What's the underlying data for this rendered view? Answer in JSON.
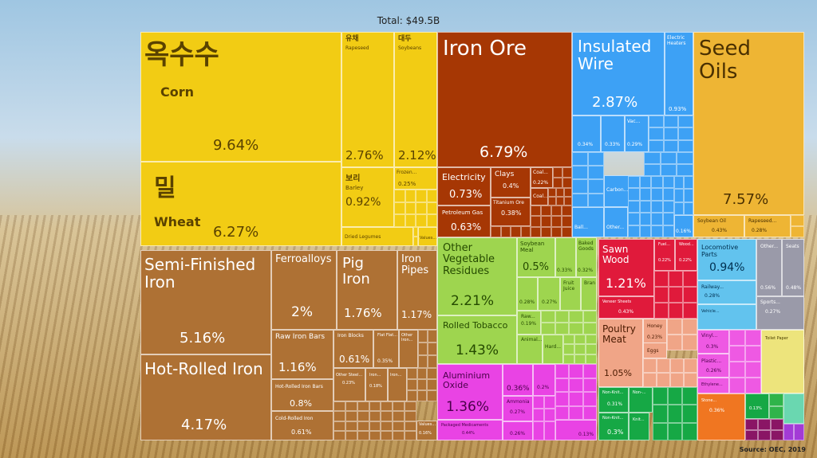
{
  "header": {
    "total": "Total: $49.5B"
  },
  "footer": {
    "source": "Source: OEC, 2019"
  },
  "colors": {
    "vegetable": "#f2cc14",
    "mineral": "#a63704",
    "machinery": "#3da1f5",
    "animal_veg_oils": "#eeb534",
    "metals": "#ae7134",
    "foodstuffs": "#9ed54f",
    "chemicals": "#e943e4",
    "wood": "#e01a3b",
    "animal": "#f0a587",
    "transport": "#62c3ee",
    "misc": "#9a9aa9",
    "plastics": "#ee59e3",
    "textiles": "#ede47c",
    "green": "#16a845",
    "orange": "#f07621"
  },
  "chart_data": {
    "type": "treemap",
    "title": "Total: $49.5B",
    "items": [
      {
        "id": "corn",
        "label_ko": "옥수수",
        "label": "Corn",
        "value": 9.64,
        "value_label": "9.64%",
        "group": "vegetable"
      },
      {
        "id": "wheat",
        "label_ko": "밀",
        "label": "Wheat",
        "value": 6.27,
        "value_label": "6.27%",
        "group": "vegetable"
      },
      {
        "id": "rapeseed",
        "label_ko": "유채",
        "label": "Rapeseed",
        "value": 2.76,
        "value_label": "2.76%",
        "group": "vegetable"
      },
      {
        "id": "soybeans",
        "label_ko": "대두",
        "label": "Soybeans",
        "value": 2.12,
        "value_label": "2.12%",
        "group": "vegetable"
      },
      {
        "id": "barley",
        "label_ko": "보리",
        "label": "Barley",
        "value": 0.92,
        "value_label": "0.92%",
        "group": "vegetable"
      },
      {
        "id": "frozen",
        "label": "Frozen...",
        "value": 0.25,
        "value_label": "0.25%",
        "group": "vegetable"
      },
      {
        "id": "dried_legumes",
        "label": "Dried Legumes",
        "group": "vegetable"
      },
      {
        "id": "values_veg",
        "label": "Values...",
        "group": "vegetable"
      },
      {
        "id": "iron_ore",
        "label": "Iron Ore",
        "value": 6.79,
        "value_label": "6.79%",
        "group": "mineral"
      },
      {
        "id": "electricity",
        "label": "Electricity",
        "value": 0.73,
        "value_label": "0.73%",
        "group": "mineral"
      },
      {
        "id": "petroleum_gas",
        "label": "Petroleum Gas",
        "value": 0.63,
        "value_label": "0.63%",
        "group": "mineral"
      },
      {
        "id": "clays",
        "label": "Clays",
        "value": 0.4,
        "value_label": "0.4%",
        "group": "mineral"
      },
      {
        "id": "coal1",
        "label": "Coal...",
        "value": 0.22,
        "value_label": "0.22%",
        "group": "mineral"
      },
      {
        "id": "titanium_ore",
        "label": "Titanium Ore",
        "value": 0.38,
        "value_label": "0.38%",
        "group": "mineral"
      },
      {
        "id": "coal2",
        "label": "Coal...",
        "group": "mineral"
      },
      {
        "id": "insulated_wire",
        "label": "Insulated Wire",
        "value": 2.87,
        "value_label": "2.87%",
        "group": "machinery"
      },
      {
        "id": "electric_heaters",
        "label": "Electric Heaters",
        "value": 0.93,
        "value_label": "0.93%",
        "group": "machinery"
      },
      {
        "id": "mach_a",
        "label": "",
        "value": 0.34,
        "value_label": "0.34%",
        "group": "machinery"
      },
      {
        "id": "mach_b",
        "label": "",
        "value": 0.33,
        "value_label": "0.33%",
        "group": "machinery"
      },
      {
        "id": "mach_vac",
        "label": "Vac...",
        "value": 0.29,
        "value_label": "0.29%",
        "group": "machinery"
      },
      {
        "id": "carbon",
        "label": "Carbon...",
        "group": "machinery"
      },
      {
        "id": "ball",
        "label": "Ball...",
        "group": "machinery"
      },
      {
        "id": "other_mach",
        "label": "Other...",
        "group": "machinery"
      },
      {
        "id": "mach_c",
        "label": "",
        "value": 0.16,
        "value_label": "0.16%",
        "group": "machinery"
      },
      {
        "id": "seed_oils",
        "label": "Seed Oils",
        "value": 7.57,
        "value_label": "7.57%",
        "group": "animal_veg_oils"
      },
      {
        "id": "soybean_oil",
        "label": "Soybean Oil",
        "value": 0.43,
        "value_label": "0.43%",
        "group": "animal_veg_oils"
      },
      {
        "id": "rapeseed_oil",
        "label": "Rapeseed...",
        "value": 0.28,
        "value_label": "0.28%",
        "group": "animal_veg_oils"
      },
      {
        "id": "semi_finished_iron",
        "label": "Semi-Finished Iron",
        "value": 5.16,
        "value_label": "5.16%",
        "group": "metals"
      },
      {
        "id": "hot_rolled_iron",
        "label": "Hot-Rolled Iron",
        "value": 4.17,
        "value_label": "4.17%",
        "group": "metals"
      },
      {
        "id": "ferroalloys",
        "label": "Ferroalloys",
        "value": 2,
        "value_label": "2%",
        "group": "metals"
      },
      {
        "id": "raw_iron_bars",
        "label": "Raw Iron Bars",
        "value": 1.16,
        "value_label": "1.16%",
        "group": "metals"
      },
      {
        "id": "hot_rolled_iron_bars",
        "label": "Hot-Rolled Iron Bars",
        "value": 0.8,
        "value_label": "0.8%",
        "group": "metals"
      },
      {
        "id": "cold_rolled_iron",
        "label": "Cold-Rolled Iron",
        "value": 0.61,
        "value_label": "0.61%",
        "group": "metals"
      },
      {
        "id": "pig_iron",
        "label": "Pig Iron",
        "value": 1.76,
        "value_label": "1.76%",
        "group": "metals"
      },
      {
        "id": "iron_pipes",
        "label": "Iron Pipes",
        "value": 1.17,
        "value_label": "1.17%",
        "group": "metals"
      },
      {
        "id": "iron_blocks",
        "label": "Iron Blocks",
        "value": 0.61,
        "value_label": "0.61%",
        "group": "metals"
      },
      {
        "id": "flat_flat",
        "label": "Flat Flat...",
        "value": 0.35,
        "value_label": "0.35%",
        "group": "metals"
      },
      {
        "id": "other_iron",
        "label": "Other Iron...",
        "group": "metals"
      },
      {
        "id": "other_steel",
        "label": "Other Steel...",
        "value": 0.23,
        "value_label": "0.23%",
        "group": "metals"
      },
      {
        "id": "iron_small",
        "label": "Iron...",
        "value": 0.18,
        "value_label": "0.18%",
        "group": "metals"
      },
      {
        "id": "iron_small2",
        "label": "Iron...",
        "group": "metals"
      },
      {
        "id": "values_metal",
        "label": "Values...",
        "value": 0.16,
        "value_label": "0.16%",
        "group": "metals"
      },
      {
        "id": "other_vegetable_residues",
        "label": "Other Vegetable Residues",
        "value": 2.21,
        "value_label": "2.21%",
        "group": "foodstuffs"
      },
      {
        "id": "rolled_tobacco",
        "label": "Rolled Tobacco",
        "value": 1.43,
        "value_label": "1.43%",
        "group": "foodstuffs"
      },
      {
        "id": "soybean_meal",
        "label": "Soybean Meal",
        "value": 0.5,
        "value_label": "0.5%",
        "group": "foodstuffs"
      },
      {
        "id": "food_a",
        "label": "",
        "value": 0.33,
        "value_label": "0.33%",
        "group": "foodstuffs"
      },
      {
        "id": "baked_goods",
        "label": "Baked Goods",
        "value": 0.32,
        "value_label": "0.32%",
        "group": "foodstuffs"
      },
      {
        "id": "food_b",
        "label": "",
        "value": 0.28,
        "value_label": "0.28%",
        "group": "foodstuffs"
      },
      {
        "id": "food_c",
        "label": "",
        "value": 0.27,
        "value_label": "0.27%",
        "group": "foodstuffs"
      },
      {
        "id": "fruit_juice",
        "label": "Fruit Juice",
        "group": "foodstuffs"
      },
      {
        "id": "bran",
        "label": "Bran",
        "group": "foodstuffs"
      },
      {
        "id": "raw",
        "label": "Raw...",
        "value": 0.19,
        "value_label": "0.19%",
        "group": "foodstuffs"
      },
      {
        "id": "animal_food",
        "label": "Animal...",
        "group": "foodstuffs"
      },
      {
        "id": "hard",
        "label": "Hard...",
        "group": "foodstuffs"
      },
      {
        "id": "aluminium_oxide",
        "label": "Aluminium Oxide",
        "value": 1.36,
        "value_label": "1.36%",
        "group": "chemicals"
      },
      {
        "id": "packaged_medicaments",
        "label": "Packaged Medicaments",
        "value": 0.44,
        "value_label": "0.44%",
        "group": "chemicals"
      },
      {
        "id": "chem_a",
        "label": "",
        "value": 0.36,
        "value_label": "0.36%",
        "group": "chemicals"
      },
      {
        "id": "chem_b",
        "label": "",
        "value": 0.2,
        "value_label": "0.2%",
        "group": "chemicals"
      },
      {
        "id": "ammonia",
        "label": "Ammonia",
        "value": 0.27,
        "value_label": "0.27%",
        "group": "chemicals"
      },
      {
        "id": "chem_c",
        "label": "",
        "value": 0.26,
        "value_label": "0.26%",
        "group": "chemicals"
      },
      {
        "id": "chem_d",
        "label": "",
        "value": 0.13,
        "value_label": "0.13%",
        "group": "chemicals"
      },
      {
        "id": "sawn_wood",
        "label": "Sawn Wood",
        "value": 1.21,
        "value_label": "1.21%",
        "group": "wood"
      },
      {
        "id": "veneer_sheets",
        "label": "Veneer Sheets",
        "value": 0.43,
        "value_label": "0.43%",
        "group": "wood"
      },
      {
        "id": "fuel",
        "label": "Fuel...",
        "value": 0.22,
        "value_label": "0.22%",
        "group": "wood"
      },
      {
        "id": "wood_small",
        "label": "Wood...",
        "value": 0.22,
        "value_label": "0.22%",
        "group": "wood"
      },
      {
        "id": "poultry_meat",
        "label": "Poultry Meat",
        "value": 1.05,
        "value_label": "1.05%",
        "group": "animal"
      },
      {
        "id": "honey",
        "label": "Honey",
        "value": 0.23,
        "value_label": "0.23%",
        "group": "animal"
      },
      {
        "id": "eggs",
        "label": "Eggs",
        "group": "animal"
      },
      {
        "id": "locomotive_parts",
        "label": "Locomotive Parts",
        "value": 0.94,
        "value_label": "0.94%",
        "group": "transport"
      },
      {
        "id": "railway",
        "label": "Railway...",
        "value": 0.28,
        "value_label": "0.28%",
        "group": "transport"
      },
      {
        "id": "vehicle",
        "label": "Vehicle...",
        "group": "transport"
      },
      {
        "id": "other_misc",
        "label": "Other...",
        "value": 0.56,
        "value_label": "0.56%",
        "group": "misc"
      },
      {
        "id": "seats",
        "label": "Seats",
        "value": 0.48,
        "value_label": "0.48%",
        "group": "misc"
      },
      {
        "id": "sports",
        "label": "Sports...",
        "value": 0.27,
        "value_label": "0.27%",
        "group": "misc"
      },
      {
        "id": "vinyl",
        "label": "Vinyl...",
        "value": 0.3,
        "value_label": "0.3%",
        "group": "plastics"
      },
      {
        "id": "plastic",
        "label": "Plastic...",
        "value": 0.26,
        "value_label": "0.26%",
        "group": "plastics"
      },
      {
        "id": "ethylene",
        "label": "Ethylene...",
        "group": "plastics"
      },
      {
        "id": "toilet_paper",
        "label": "Toilet Paper",
        "group": "textiles"
      },
      {
        "id": "non_knit1",
        "label": "Non-Knit...",
        "value": 0.31,
        "value_label": "0.31%",
        "group": "green"
      },
      {
        "id": "non_knit2",
        "label": "Non-...",
        "group": "green"
      },
      {
        "id": "non_knit3",
        "label": "Non-Knit...",
        "value": 0.3,
        "value_label": "0.3%",
        "group": "green"
      },
      {
        "id": "knit",
        "label": "Knit...",
        "group": "green"
      },
      {
        "id": "stone",
        "label": "Stone...",
        "value": 0.36,
        "value_label": "0.36%",
        "group": "orange"
      },
      {
        "id": "small_green",
        "label": "",
        "value": 0.13,
        "value_label": "0.13%",
        "group": "green"
      }
    ]
  }
}
